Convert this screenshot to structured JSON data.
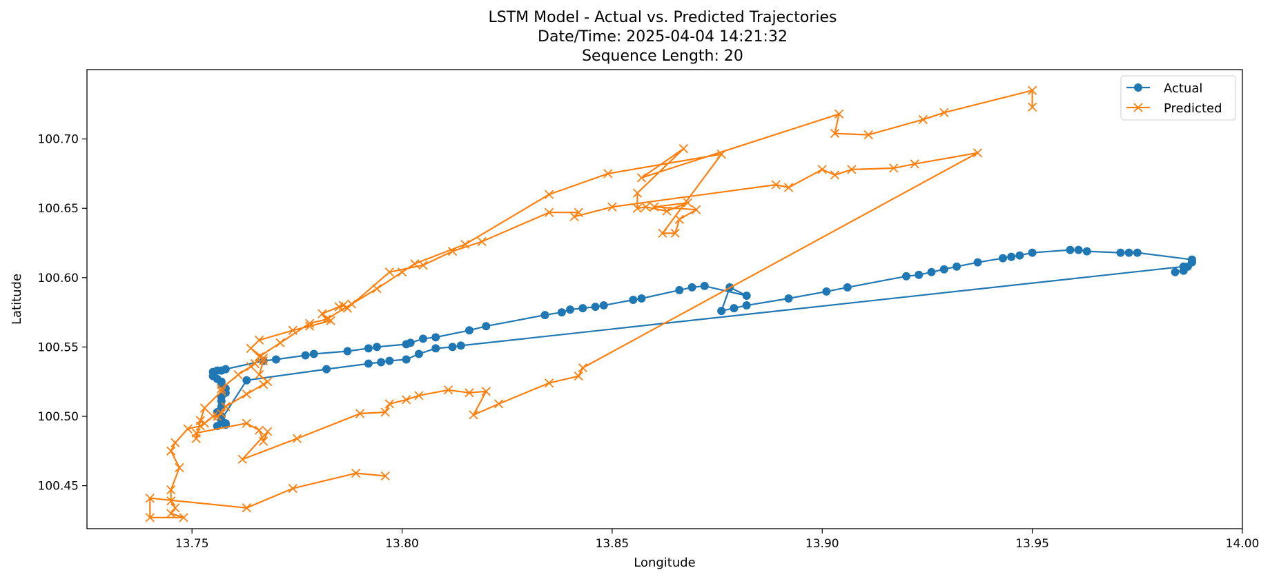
{
  "chart_data": {
    "type": "line",
    "title": [
      "LSTM Model - Actual vs. Predicted Trajectories",
      "Date/Time: 2025-04-04 14:21:32",
      "Sequence Length: 20"
    ],
    "xlabel": "Longitude",
    "ylabel": "Latitude",
    "xlim": [
      13.725,
      14.0
    ],
    "ylim": [
      100.419,
      100.75
    ],
    "xticks": [
      13.75,
      13.8,
      13.85,
      13.9,
      13.95,
      14.0
    ],
    "xtick_labels": [
      "13.75",
      "13.80",
      "13.85",
      "13.90",
      "13.95",
      "14.00"
    ],
    "yticks": [
      100.45,
      100.5,
      100.55,
      100.6,
      100.65,
      100.7
    ],
    "ytick_labels": [
      "100.45",
      "100.50",
      "100.55",
      "100.60",
      "100.65",
      "100.70"
    ],
    "grid": false,
    "legend_position": "top-right",
    "series": [
      {
        "name": "Actual",
        "color": "#1f77b4",
        "marker": "circle",
        "points": [
          [
            13.984,
            100.604
          ],
          [
            13.986,
            100.605
          ],
          [
            13.987,
            100.608
          ],
          [
            13.988,
            100.611
          ],
          [
            13.988,
            100.613
          ],
          [
            13.975,
            100.618
          ],
          [
            13.973,
            100.618
          ],
          [
            13.971,
            100.618
          ],
          [
            13.963,
            100.619
          ],
          [
            13.961,
            100.62
          ],
          [
            13.959,
            100.62
          ],
          [
            13.95,
            100.618
          ],
          [
            13.947,
            100.616
          ],
          [
            13.945,
            100.615
          ],
          [
            13.943,
            100.614
          ],
          [
            13.937,
            100.611
          ],
          [
            13.932,
            100.608
          ],
          [
            13.929,
            100.606
          ],
          [
            13.926,
            100.604
          ],
          [
            13.923,
            100.602
          ],
          [
            13.92,
            100.601
          ],
          [
            13.906,
            100.593
          ],
          [
            13.901,
            100.59
          ],
          [
            13.892,
            100.585
          ],
          [
            13.882,
            100.58
          ],
          [
            13.879,
            100.578
          ],
          [
            13.876,
            100.576
          ],
          [
            13.878,
            100.593
          ],
          [
            13.882,
            100.587
          ],
          [
            13.872,
            100.594
          ],
          [
            13.869,
            100.593
          ],
          [
            13.866,
            100.591
          ],
          [
            13.857,
            100.585
          ],
          [
            13.855,
            100.584
          ],
          [
            13.848,
            100.58
          ],
          [
            13.846,
            100.579
          ],
          [
            13.843,
            100.578
          ],
          [
            13.84,
            100.577
          ],
          [
            13.838,
            100.575
          ],
          [
            13.834,
            100.573
          ],
          [
            13.82,
            100.565
          ],
          [
            13.816,
            100.562
          ],
          [
            13.808,
            100.557
          ],
          [
            13.805,
            100.556
          ],
          [
            13.802,
            100.553
          ],
          [
            13.801,
            100.552
          ],
          [
            13.794,
            100.55
          ],
          [
            13.792,
            100.549
          ],
          [
            13.787,
            100.547
          ],
          [
            13.779,
            100.545
          ],
          [
            13.777,
            100.544
          ],
          [
            13.77,
            100.541
          ],
          [
            13.767,
            100.54
          ],
          [
            13.758,
            100.534
          ],
          [
            13.757,
            100.533
          ],
          [
            13.756,
            100.533
          ],
          [
            13.755,
            100.532
          ],
          [
            13.755,
            100.529
          ],
          [
            13.756,
            100.527
          ],
          [
            13.757,
            100.525
          ],
          [
            13.757,
            100.523
          ],
          [
            13.758,
            100.52
          ],
          [
            13.758,
            100.517
          ],
          [
            13.757,
            100.514
          ],
          [
            13.757,
            100.511
          ],
          [
            13.757,
            100.507
          ],
          [
            13.756,
            100.503
          ],
          [
            13.757,
            100.5
          ],
          [
            13.757,
            100.497
          ],
          [
            13.758,
            100.495
          ],
          [
            13.758,
            100.494
          ],
          [
            13.756,
            100.493
          ],
          [
            13.763,
            100.526
          ],
          [
            13.782,
            100.534
          ],
          [
            13.792,
            100.538
          ],
          [
            13.795,
            100.539
          ],
          [
            13.797,
            100.54
          ],
          [
            13.801,
            100.541
          ],
          [
            13.804,
            100.545
          ],
          [
            13.808,
            100.549
          ],
          [
            13.812,
            100.55
          ],
          [
            13.814,
            100.551
          ],
          [
            13.986,
            100.608
          ]
        ]
      },
      {
        "name": "Predicted",
        "color": "#ff7f0e",
        "marker": "x",
        "points": [
          [
            13.95,
            100.723
          ],
          [
            13.95,
            100.735
          ],
          [
            13.929,
            100.719
          ],
          [
            13.924,
            100.714
          ],
          [
            13.911,
            100.703
          ],
          [
            13.903,
            100.704
          ],
          [
            13.904,
            100.718
          ],
          [
            13.857,
            100.672
          ],
          [
            13.867,
            100.693
          ],
          [
            13.856,
            100.661
          ],
          [
            13.856,
            100.65
          ],
          [
            13.858,
            100.651
          ],
          [
            13.863,
            100.648
          ],
          [
            13.868,
            100.654
          ],
          [
            13.86,
            100.651
          ],
          [
            13.87,
            100.649
          ],
          [
            13.866,
            100.642
          ],
          [
            13.865,
            100.632
          ],
          [
            13.862,
            100.632
          ],
          [
            13.876,
            100.689
          ],
          [
            13.849,
            100.675
          ],
          [
            13.835,
            100.66
          ],
          [
            13.815,
            100.624
          ],
          [
            13.803,
            100.61
          ],
          [
            13.8,
            100.604
          ],
          [
            13.794,
            100.592
          ],
          [
            13.788,
            100.581
          ],
          [
            13.782,
            100.57
          ],
          [
            13.778,
            100.567
          ],
          [
            13.771,
            100.553
          ],
          [
            13.766,
            100.543
          ],
          [
            13.765,
            100.538
          ],
          [
            13.764,
            100.536
          ],
          [
            13.761,
            100.53
          ],
          [
            13.757,
            100.52
          ],
          [
            13.757,
            100.518
          ],
          [
            13.753,
            100.506
          ],
          [
            13.752,
            100.497
          ],
          [
            13.751,
            100.484
          ],
          [
            13.751,
            100.488
          ],
          [
            13.763,
            100.495
          ],
          [
            13.766,
            100.49
          ],
          [
            13.767,
            100.482
          ],
          [
            13.768,
            100.489
          ],
          [
            13.762,
            100.469
          ],
          [
            13.775,
            100.484
          ],
          [
            13.79,
            100.502
          ],
          [
            13.796,
            100.503
          ],
          [
            13.797,
            100.509
          ],
          [
            13.801,
            100.512
          ],
          [
            13.804,
            100.515
          ],
          [
            13.811,
            100.519
          ],
          [
            13.816,
            100.517
          ],
          [
            13.82,
            100.518
          ],
          [
            13.817,
            100.501
          ],
          [
            13.823,
            100.509
          ],
          [
            13.835,
            100.524
          ],
          [
            13.842,
            100.529
          ],
          [
            13.843,
            100.535
          ],
          [
            13.937,
            100.69
          ],
          [
            13.922,
            100.682
          ],
          [
            13.917,
            100.679
          ],
          [
            13.907,
            100.678
          ],
          [
            13.903,
            100.674
          ],
          [
            13.9,
            100.678
          ],
          [
            13.892,
            100.665
          ],
          [
            13.889,
            100.667
          ],
          [
            13.85,
            100.651
          ],
          [
            13.841,
            100.644
          ],
          [
            13.842,
            100.647
          ],
          [
            13.835,
            100.647
          ],
          [
            13.819,
            100.626
          ],
          [
            13.812,
            100.619
          ],
          [
            13.805,
            100.609
          ],
          [
            13.797,
            100.604
          ],
          [
            13.787,
            100.578
          ],
          [
            13.786,
            100.58
          ],
          [
            13.785,
            100.579
          ],
          [
            13.781,
            100.574
          ],
          [
            13.783,
            100.569
          ],
          [
            13.778,
            100.565
          ],
          [
            13.774,
            100.562
          ],
          [
            13.766,
            100.555
          ],
          [
            13.764,
            100.549
          ],
          [
            13.767,
            100.542
          ],
          [
            13.767,
            100.54
          ],
          [
            13.766,
            100.53
          ],
          [
            13.768,
            100.525
          ],
          [
            13.767,
            100.523
          ],
          [
            13.763,
            100.516
          ],
          [
            13.758,
            100.507
          ],
          [
            13.757,
            100.502
          ],
          [
            13.756,
            100.5
          ],
          [
            13.755,
            100.5
          ],
          [
            13.753,
            100.495
          ],
          [
            13.752,
            100.493
          ],
          [
            13.749,
            100.491
          ],
          [
            13.746,
            100.481
          ],
          [
            13.745,
            100.475
          ],
          [
            13.747,
            100.463
          ],
          [
            13.745,
            100.447
          ],
          [
            13.745,
            100.439
          ],
          [
            13.746,
            100.434
          ],
          [
            13.745,
            100.43
          ],
          [
            13.748,
            100.427
          ],
          [
            13.74,
            100.427
          ],
          [
            13.74,
            100.441
          ],
          [
            13.763,
            100.434
          ],
          [
            13.774,
            100.448
          ],
          [
            13.789,
            100.459
          ],
          [
            13.796,
            100.457
          ]
        ]
      }
    ]
  }
}
